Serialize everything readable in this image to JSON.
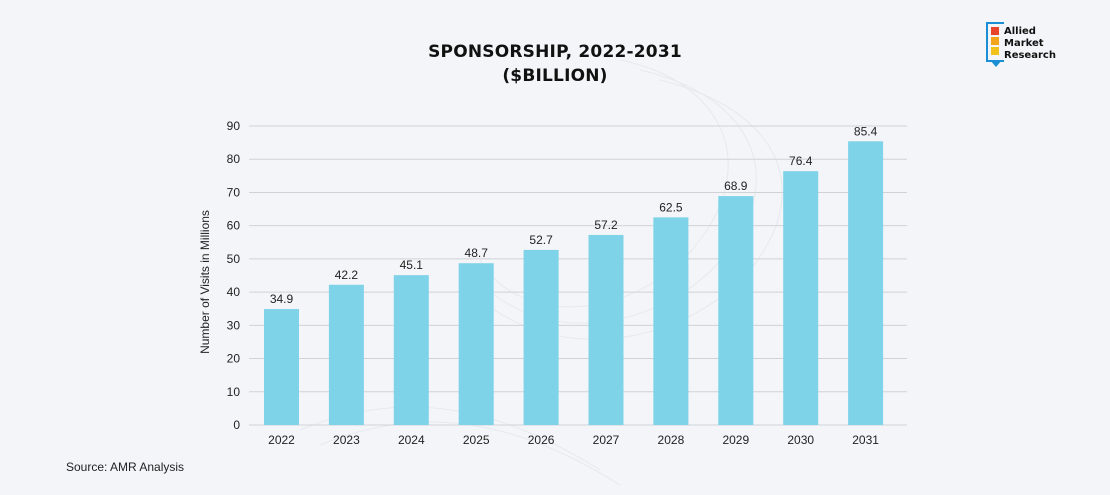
{
  "brand": {
    "line1": "Allied",
    "line2": "Market",
    "line3": "Research",
    "frame_color": "#1a8fd6",
    "square_colors": [
      "#e8432b",
      "#f2a51b",
      "#f2c21b"
    ]
  },
  "source_text": "Source: AMR Analysis",
  "chart_data": {
    "type": "bar",
    "title_line1": "SPONSORSHIP, 2022-2031",
    "title_line2": "($BILLION)",
    "xlabel": "",
    "ylabel": "Number of Visits in Millions",
    "categories": [
      "2022",
      "2023",
      "2024",
      "2025",
      "2026",
      "2027",
      "2028",
      "2029",
      "2030",
      "2031"
    ],
    "values": [
      34.9,
      42.2,
      45.1,
      48.7,
      52.7,
      57.2,
      62.5,
      68.9,
      76.4,
      85.4
    ],
    "value_labels": [
      "34.9",
      "42.2",
      "45.1",
      "48.7",
      "52.7",
      "57.2",
      "62.5",
      "68.9",
      "76.4",
      "85.4"
    ],
    "ylim": [
      0,
      90
    ],
    "yticks": [
      "0",
      "10",
      "20",
      "30",
      "40",
      "50",
      "60",
      "70",
      "80",
      "90"
    ],
    "grid": true,
    "bar_color": "#7fd3e8",
    "grid_color": "#cfd3d8"
  }
}
